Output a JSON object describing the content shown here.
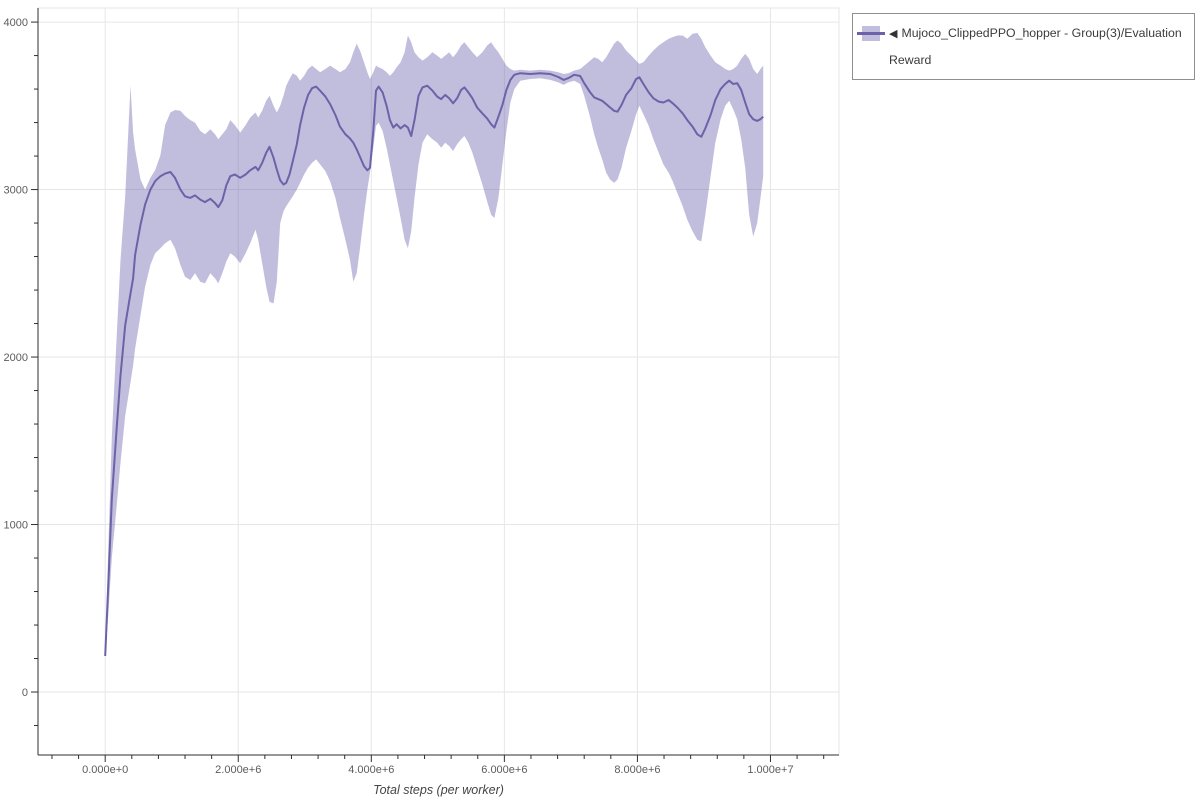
{
  "figure": {
    "x_axis_title": "Total steps (per worker)",
    "legend": {
      "collapse_glyph": "◀",
      "label": "Mujoco_ClippedPPO_hopper - Group(3)/Evaluation Reward"
    }
  },
  "chart_data": {
    "type": "line",
    "title": "",
    "xlabel": "Total steps (per worker)",
    "ylabel": "",
    "legend_position": "outside-top-right",
    "grid": "major-only",
    "x_unit": "steps",
    "x_scale_note": "x values below are steps in millions (1e6)",
    "x_range_e6": [
      -1.01,
      11.03
    ],
    "y_range": [
      -376,
      4084
    ],
    "x_ticks": [
      {
        "v": 0,
        "label": "0.000e+0"
      },
      {
        "v": 2,
        "label": "2.000e+6"
      },
      {
        "v": 4,
        "label": "4.000e+6"
      },
      {
        "v": 6,
        "label": "6.000e+6"
      },
      {
        "v": 8,
        "label": "8.000e+6"
      },
      {
        "v": 10,
        "label": "1.000e+7"
      }
    ],
    "y_ticks": [
      {
        "v": 0,
        "label": "0"
      },
      {
        "v": 1000,
        "label": "1000"
      },
      {
        "v": 2000,
        "label": "2000"
      },
      {
        "v": 3000,
        "label": "3000"
      },
      {
        "v": 4000,
        "label": "4000"
      }
    ],
    "x_minor_step_e6": 0.4,
    "y_minor_step": 200,
    "colors": {
      "line": "#6a63a8",
      "band": "rgba(108,97,173,0.42)",
      "grid": "#e6e6e6",
      "axis": "#2f2f2f",
      "tick_label": "#5c5c5c",
      "axis_title": "#454545",
      "legend_border": "#8f8f8f",
      "legend_text": "#3b3b3b"
    },
    "series": [
      {
        "name": "Mujoco_ClippedPPO_hopper - Group(3)/Evaluation Reward",
        "point_format": [
          "x_e6",
          "band_lower",
          "mean",
          "band_upper"
        ],
        "points": [
          [
            0.0,
            205,
            215,
            230
          ],
          [
            0.05,
            480,
            670,
            900
          ],
          [
            0.1,
            800,
            1150,
            1520
          ],
          [
            0.17,
            1100,
            1560,
            2100
          ],
          [
            0.23,
            1370,
            1890,
            2580
          ],
          [
            0.3,
            1650,
            2190,
            2960
          ],
          [
            0.38,
            1850,
            2380,
            3620
          ],
          [
            0.42,
            1950,
            2470,
            3340
          ],
          [
            0.45,
            2050,
            2610,
            3240
          ],
          [
            0.53,
            2250,
            2790,
            3060
          ],
          [
            0.6,
            2420,
            2910,
            3000
          ],
          [
            0.68,
            2550,
            3000,
            3070
          ],
          [
            0.75,
            2620,
            3050,
            3115
          ],
          [
            0.83,
            2650,
            3080,
            3205
          ],
          [
            0.9,
            2680,
            3095,
            3385
          ],
          [
            0.98,
            2700,
            3105,
            3460
          ],
          [
            1.05,
            2650,
            3070,
            3475
          ],
          [
            1.13,
            2550,
            3000,
            3470
          ],
          [
            1.2,
            2480,
            2960,
            3440
          ],
          [
            1.28,
            2460,
            2950,
            3415
          ],
          [
            1.35,
            2500,
            2965,
            3400
          ],
          [
            1.43,
            2450,
            2940,
            3350
          ],
          [
            1.5,
            2440,
            2925,
            3330
          ],
          [
            1.58,
            2500,
            2945,
            3360
          ],
          [
            1.65,
            2470,
            2920,
            3330
          ],
          [
            1.7,
            2440,
            2895,
            3300
          ],
          [
            1.76,
            2500,
            2935,
            3330
          ],
          [
            1.82,
            2570,
            3025,
            3360
          ],
          [
            1.88,
            2620,
            3080,
            3415
          ],
          [
            1.95,
            2600,
            3090,
            3385
          ],
          [
            2.03,
            2560,
            3070,
            3340
          ],
          [
            2.11,
            2620,
            3090,
            3385
          ],
          [
            2.18,
            2680,
            3115,
            3430
          ],
          [
            2.26,
            2760,
            3135,
            3460
          ],
          [
            2.3,
            2700,
            3115,
            3430
          ],
          [
            2.36,
            2560,
            3160,
            3470
          ],
          [
            2.42,
            2420,
            3220,
            3530
          ],
          [
            2.47,
            2330,
            3255,
            3560
          ],
          [
            2.53,
            2320,
            3190,
            3500
          ],
          [
            2.58,
            2450,
            3120,
            3460
          ],
          [
            2.63,
            2800,
            3055,
            3500
          ],
          [
            2.68,
            2870,
            3030,
            3560
          ],
          [
            2.72,
            2900,
            3040,
            3620
          ],
          [
            2.77,
            2930,
            3090,
            3660
          ],
          [
            2.82,
            2960,
            3170,
            3695
          ],
          [
            2.88,
            3000,
            3270,
            3680
          ],
          [
            2.93,
            3040,
            3385,
            3650
          ],
          [
            2.99,
            3090,
            3490,
            3680
          ],
          [
            3.05,
            3130,
            3565,
            3720
          ],
          [
            3.11,
            3160,
            3605,
            3740
          ],
          [
            3.17,
            3180,
            3615,
            3720
          ],
          [
            3.23,
            3150,
            3590,
            3700
          ],
          [
            3.31,
            3110,
            3555,
            3720
          ],
          [
            3.38,
            3050,
            3510,
            3740
          ],
          [
            3.46,
            2950,
            3445,
            3720
          ],
          [
            3.53,
            2830,
            3375,
            3700
          ],
          [
            3.61,
            2700,
            3330,
            3720
          ],
          [
            3.68,
            2580,
            3305,
            3760
          ],
          [
            3.73,
            2450,
            3280,
            3820
          ],
          [
            3.78,
            2500,
            3240,
            3870
          ],
          [
            3.83,
            2650,
            3195,
            3830
          ],
          [
            3.89,
            2850,
            3140,
            3760
          ],
          [
            3.94,
            3000,
            3115,
            3700
          ],
          [
            3.98,
            3100,
            3130,
            3660
          ],
          [
            4.03,
            3250,
            3350,
            3700
          ],
          [
            4.07,
            3380,
            3590,
            3740
          ],
          [
            4.11,
            3400,
            3615,
            3730
          ],
          [
            4.17,
            3350,
            3580,
            3720
          ],
          [
            4.23,
            3250,
            3500,
            3700
          ],
          [
            4.28,
            3150,
            3415,
            3680
          ],
          [
            4.33,
            3050,
            3370,
            3700
          ],
          [
            4.38,
            2950,
            3390,
            3730
          ],
          [
            4.44,
            2830,
            3365,
            3760
          ],
          [
            4.5,
            2700,
            3385,
            3820
          ],
          [
            4.55,
            2650,
            3370,
            3920
          ],
          [
            4.6,
            2750,
            3320,
            3880
          ],
          [
            4.65,
            2950,
            3415,
            3820
          ],
          [
            4.71,
            3150,
            3560,
            3790
          ],
          [
            4.77,
            3280,
            3610,
            3770
          ],
          [
            4.84,
            3330,
            3620,
            3790
          ],
          [
            4.92,
            3300,
            3590,
            3820
          ],
          [
            4.99,
            3280,
            3555,
            3800
          ],
          [
            5.05,
            3250,
            3540,
            3780
          ],
          [
            5.11,
            3280,
            3565,
            3800
          ],
          [
            5.17,
            3260,
            3545,
            3820
          ],
          [
            5.23,
            3230,
            3515,
            3790
          ],
          [
            5.29,
            3270,
            3545,
            3820
          ],
          [
            5.35,
            3300,
            3595,
            3860
          ],
          [
            5.4,
            3320,
            3610,
            3880
          ],
          [
            5.46,
            3280,
            3580,
            3850
          ],
          [
            5.52,
            3220,
            3545,
            3820
          ],
          [
            5.59,
            3130,
            3490,
            3790
          ],
          [
            5.67,
            3030,
            3455,
            3820
          ],
          [
            5.74,
            2930,
            3425,
            3860
          ],
          [
            5.8,
            2850,
            3390,
            3880
          ],
          [
            5.85,
            2830,
            3370,
            3850
          ],
          [
            5.91,
            2950,
            3435,
            3820
          ],
          [
            5.97,
            3150,
            3505,
            3780
          ],
          [
            6.03,
            3350,
            3595,
            3740
          ],
          [
            6.09,
            3520,
            3655,
            3720
          ],
          [
            6.15,
            3600,
            3685,
            3710
          ],
          [
            6.24,
            3650,
            3695,
            3715
          ],
          [
            6.39,
            3660,
            3690,
            3710
          ],
          [
            6.54,
            3665,
            3695,
            3715
          ],
          [
            6.69,
            3655,
            3690,
            3710
          ],
          [
            6.81,
            3640,
            3672,
            3700
          ],
          [
            6.89,
            3625,
            3655,
            3690
          ],
          [
            6.96,
            3640,
            3665,
            3695
          ],
          [
            7.05,
            3650,
            3685,
            3710
          ],
          [
            7.14,
            3630,
            3678,
            3720
          ],
          [
            7.2,
            3560,
            3635,
            3740
          ],
          [
            7.29,
            3430,
            3580,
            3770
          ],
          [
            7.35,
            3330,
            3550,
            3790
          ],
          [
            7.41,
            3250,
            3540,
            3780
          ],
          [
            7.47,
            3180,
            3530,
            3760
          ],
          [
            7.53,
            3100,
            3510,
            3790
          ],
          [
            7.59,
            3060,
            3490,
            3830
          ],
          [
            7.65,
            3040,
            3470,
            3870
          ],
          [
            7.7,
            3060,
            3465,
            3890
          ],
          [
            7.76,
            3130,
            3505,
            3870
          ],
          [
            7.83,
            3250,
            3565,
            3830
          ],
          [
            7.91,
            3350,
            3605,
            3800
          ],
          [
            7.98,
            3450,
            3660,
            3770
          ],
          [
            8.03,
            3500,
            3670,
            3750
          ],
          [
            8.09,
            3450,
            3630,
            3760
          ],
          [
            8.17,
            3380,
            3580,
            3800
          ],
          [
            8.24,
            3300,
            3545,
            3830
          ],
          [
            8.32,
            3220,
            3525,
            3860
          ],
          [
            8.39,
            3150,
            3520,
            3880
          ],
          [
            8.47,
            3100,
            3535,
            3900
          ],
          [
            8.53,
            3050,
            3515,
            3910
          ],
          [
            8.6,
            2980,
            3490,
            3920
          ],
          [
            8.68,
            2900,
            3455,
            3920
          ],
          [
            8.75,
            2820,
            3415,
            3900
          ],
          [
            8.83,
            2750,
            3375,
            3930
          ],
          [
            8.9,
            2700,
            3330,
            3935
          ],
          [
            8.96,
            2690,
            3315,
            3900
          ],
          [
            9.02,
            2850,
            3365,
            3850
          ],
          [
            9.1,
            3080,
            3445,
            3800
          ],
          [
            9.17,
            3280,
            3535,
            3760
          ],
          [
            9.25,
            3420,
            3600,
            3740
          ],
          [
            9.32,
            3500,
            3630,
            3720
          ],
          [
            9.38,
            3530,
            3650,
            3710
          ],
          [
            9.44,
            3480,
            3630,
            3720
          ],
          [
            9.5,
            3420,
            3635,
            3740
          ],
          [
            9.56,
            3300,
            3595,
            3780
          ],
          [
            9.62,
            3130,
            3520,
            3810
          ],
          [
            9.68,
            2850,
            3450,
            3780
          ],
          [
            9.74,
            2720,
            3420,
            3720
          ],
          [
            9.8,
            2800,
            3410,
            3690
          ],
          [
            9.85,
            2950,
            3420,
            3720
          ],
          [
            9.89,
            3080,
            3435,
            3740
          ]
        ]
      }
    ]
  }
}
